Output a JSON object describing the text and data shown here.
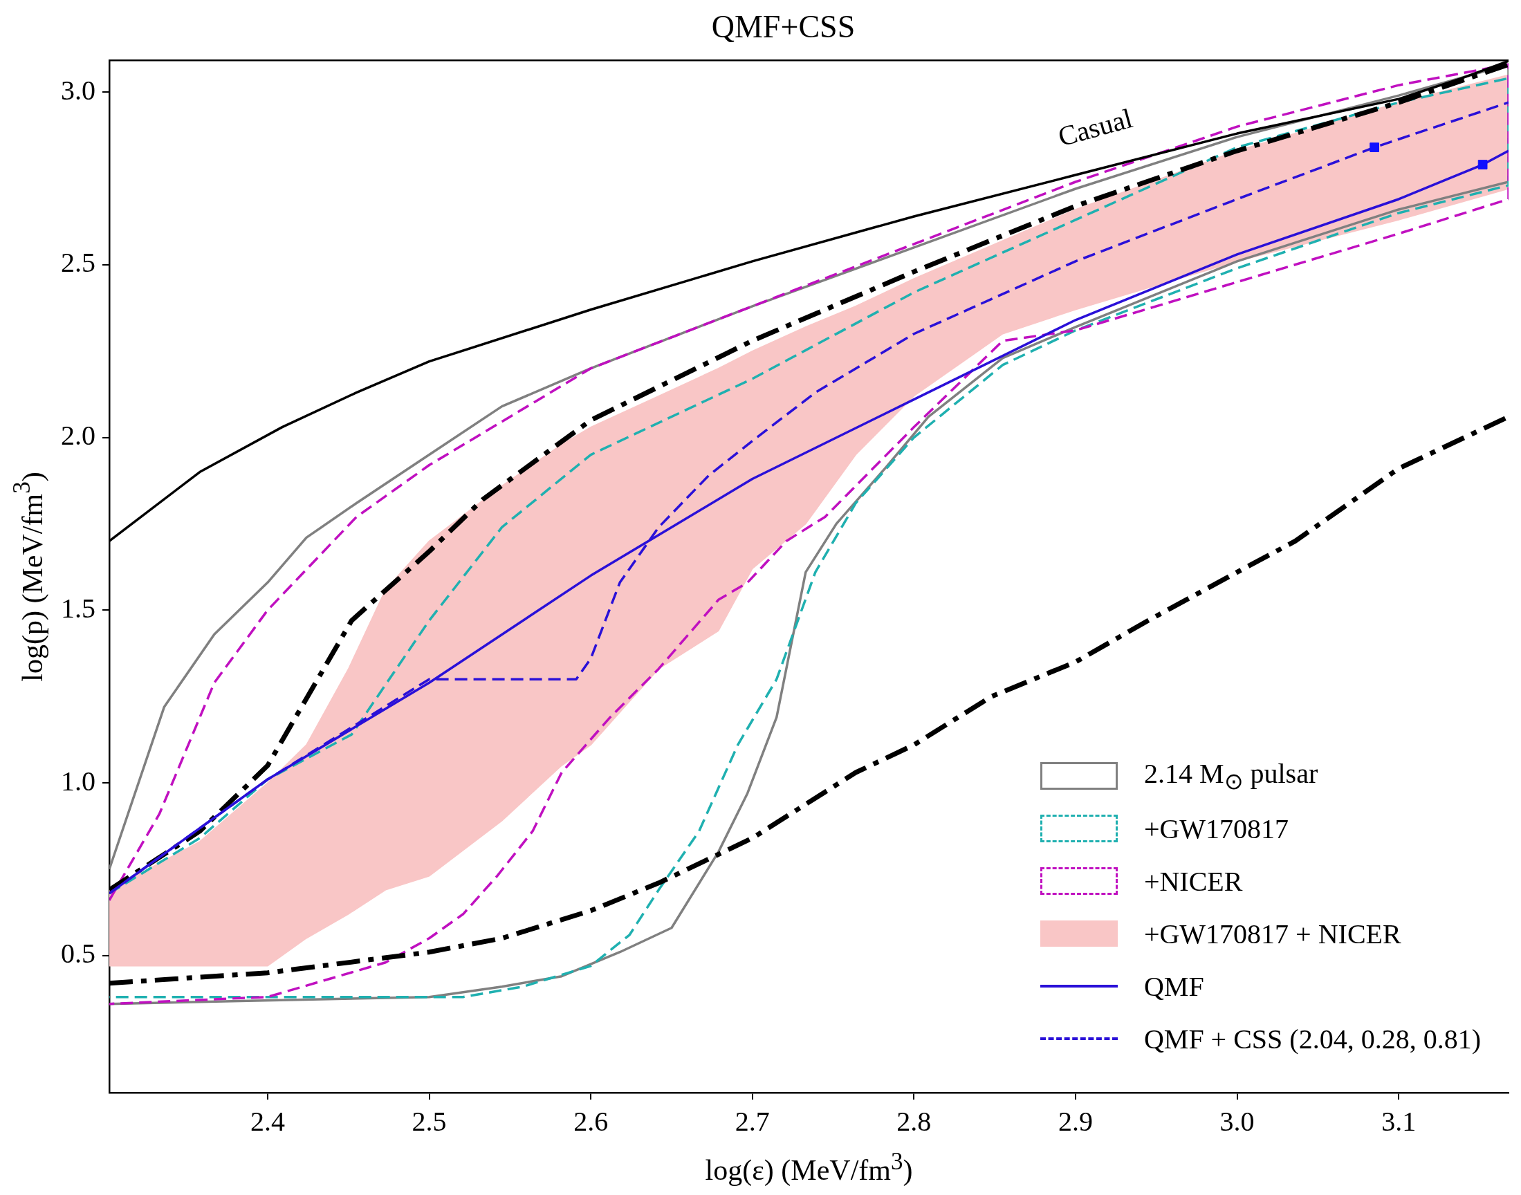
{
  "chart_data": {
    "type": "line",
    "title": "QMF+CSS",
    "xlabel": "log(ε) (MeV/fm$^{3}$)",
    "ylabel": "log(p) (MeV/fm$^{3}$)",
    "xlim": [
      2.302,
      3.168
    ],
    "ylim": [
      0.103,
      3.092
    ],
    "xticks": [
      2.4,
      2.5,
      2.6,
      2.7,
      2.8,
      2.9,
      {
        "value": 3,
        "label": "3.0"
      },
      3.1
    ],
    "yticks": [
      0.5,
      {
        "value": 1,
        "label": "1.0"
      },
      1.5,
      {
        "value": 2,
        "label": "2.0"
      },
      2.5,
      {
        "value": 3,
        "label": "3.0"
      }
    ],
    "legend": "bottom right",
    "annotations": [
      "Casual"
    ],
    "series": [
      {
        "name": "2.14 M$_{⊙}$ pulsar",
        "color": "#808080",
        "line_style": "solid",
        "x": [
          2.302,
          2.336,
          2.367,
          2.4,
          2.424,
          2.455,
          2.5,
          2.545,
          2.6,
          2.7,
          2.8,
          2.9,
          3.0,
          3.1,
          3.168,
          3.168,
          3.1,
          3.0,
          2.9,
          2.855,
          2.809,
          2.782,
          2.752,
          2.733,
          2.715,
          2.697,
          2.679,
          2.65,
          2.618,
          2.582,
          2.545,
          2.5,
          2.302
        ],
        "values": [
          0.75,
          1.22,
          1.43,
          1.58,
          1.71,
          1.81,
          1.95,
          2.09,
          2.2,
          2.38,
          2.55,
          2.72,
          2.87,
          2.99,
          3.08,
          2.74,
          2.66,
          2.51,
          2.32,
          2.23,
          2.06,
          1.91,
          1.75,
          1.61,
          1.19,
          0.97,
          0.8,
          0.58,
          0.51,
          0.44,
          0.41,
          0.38,
          0.36
        ]
      },
      {
        "name": "+GW170817",
        "color": "#1fb0b0",
        "line_style": "dashed",
        "x": [
          2.302,
          2.358,
          2.4,
          2.452,
          2.5,
          2.545,
          2.6,
          2.7,
          2.8,
          2.9,
          3.0,
          3.1,
          3.168,
          3.168,
          3.1,
          3.0,
          2.9,
          2.855,
          2.8,
          2.764,
          2.739,
          2.715,
          2.691,
          2.667,
          2.642,
          2.624,
          2.6,
          2.558,
          2.521,
          2.302
        ],
        "values": [
          0.68,
          0.84,
          1.01,
          1.14,
          1.47,
          1.74,
          1.95,
          2.17,
          2.42,
          2.63,
          2.84,
          2.97,
          3.04,
          2.73,
          2.65,
          2.49,
          2.31,
          2.21,
          2.0,
          1.81,
          1.61,
          1.3,
          1.11,
          0.86,
          0.69,
          0.56,
          0.47,
          0.41,
          0.38,
          0.38
        ]
      },
      {
        "name": "+NICER",
        "color": "#c010c0",
        "line_style": "dashed",
        "x": [
          2.302,
          2.333,
          2.367,
          2.4,
          2.455,
          2.5,
          2.6,
          2.7,
          2.8,
          2.9,
          3.0,
          3.1,
          3.168,
          3.168,
          3.1,
          3.0,
          2.9,
          2.855,
          2.8,
          2.764,
          2.745,
          2.721,
          2.697,
          2.679,
          2.642,
          2.612,
          2.582,
          2.564,
          2.542,
          2.521,
          2.5,
          2.473,
          2.4,
          2.302
        ],
        "values": [
          0.66,
          0.91,
          1.29,
          1.5,
          1.77,
          1.92,
          2.2,
          2.38,
          2.56,
          2.74,
          2.9,
          3.02,
          3.08,
          2.69,
          2.59,
          2.45,
          2.31,
          2.28,
          2.03,
          1.86,
          1.77,
          1.7,
          1.58,
          1.53,
          1.33,
          1.19,
          1.03,
          0.86,
          0.73,
          0.62,
          0.55,
          0.48,
          0.38,
          0.36
        ]
      },
      {
        "name": "+GW170817 + NICER",
        "type": "area",
        "color": "#f9c6c6",
        "x": [
          2.302,
          2.358,
          2.4,
          2.424,
          2.45,
          2.473,
          2.5,
          2.545,
          2.582,
          2.6,
          2.642,
          2.679,
          2.7,
          2.733,
          2.764,
          2.8,
          2.855,
          2.9,
          3.0,
          3.1,
          3.168,
          3.168,
          3.1,
          3.0,
          2.9,
          2.855,
          2.8,
          2.764,
          2.733,
          2.7,
          2.679,
          2.642,
          2.6,
          2.582,
          2.545,
          2.5,
          2.473,
          2.45,
          2.424,
          2.4,
          2.358,
          2.302
        ],
        "values": [
          0.69,
          0.83,
          1.0,
          1.11,
          1.33,
          1.56,
          1.7,
          1.86,
          1.98,
          2.03,
          2.12,
          2.2,
          2.25,
          2.32,
          2.38,
          2.46,
          2.57,
          2.66,
          2.83,
          2.97,
          3.05,
          2.72,
          2.63,
          2.51,
          2.37,
          2.3,
          2.12,
          1.95,
          1.75,
          1.62,
          1.44,
          1.33,
          1.11,
          1.05,
          0.89,
          0.73,
          0.69,
          0.62,
          0.55,
          0.47,
          0.47,
          0.47
        ]
      },
      {
        "color": "#000000",
        "line_style": "solid",
        "x": [
          2.302,
          2.358,
          2.409,
          2.455,
          2.5,
          2.6,
          2.7,
          2.8,
          2.9,
          3.0,
          3.1,
          3.139,
          3.168
        ],
        "values": [
          1.7,
          1.9,
          2.03,
          2.13,
          2.22,
          2.37,
          2.51,
          2.64,
          2.76,
          2.88,
          2.98,
          3.04,
          3.09
        ]
      },
      {
        "color": "#000000",
        "line_style": "dashdot",
        "x": [
          2.302,
          2.358,
          2.4,
          2.452,
          2.5,
          2.533,
          2.6,
          2.7,
          2.8,
          2.9,
          3.0,
          3.1,
          3.168
        ],
        "values": [
          0.69,
          0.86,
          1.05,
          1.47,
          1.67,
          1.82,
          2.05,
          2.28,
          2.48,
          2.67,
          2.83,
          2.97,
          3.08
        ]
      },
      {
        "color": "#000000",
        "line_style": "dashdot",
        "x": [
          2.302,
          2.4,
          2.5,
          2.545,
          2.6,
          2.642,
          2.7,
          2.764,
          2.8,
          2.848,
          2.9,
          2.945,
          3.0,
          3.036,
          3.1,
          3.168
        ],
        "values": [
          0.42,
          0.45,
          0.51,
          0.55,
          0.63,
          0.71,
          0.84,
          1.03,
          1.11,
          1.25,
          1.35,
          1.47,
          1.61,
          1.7,
          1.91,
          2.06
        ]
      },
      {
        "name": "QMF",
        "color": "#2a10d8",
        "line_style": "solid",
        "x": [
          2.302,
          2.4,
          2.5,
          2.6,
          2.7,
          2.8,
          2.9,
          3.0,
          3.1,
          3.152,
          3.168
        ],
        "values": [
          0.68,
          1.01,
          1.29,
          1.6,
          1.88,
          2.11,
          2.34,
          2.53,
          2.69,
          2.79,
          2.83
        ]
      },
      {
        "name": "QMF + CSS (2.04, 0.28, 0.81)",
        "color": "#2a10d8",
        "line_style": "dashed",
        "x": [
          2.302,
          2.4,
          2.5,
          2.591,
          2.6,
          2.618,
          2.642,
          2.673,
          2.7,
          2.739,
          2.8,
          2.9,
          3.0,
          3.085,
          3.168
        ],
        "values": [
          0.68,
          1.01,
          1.3,
          1.3,
          1.36,
          1.58,
          1.74,
          1.89,
          1.99,
          2.13,
          2.3,
          2.51,
          2.69,
          2.84,
          2.97
        ]
      },
      {
        "type": "scatter",
        "color": "#1010ff",
        "marker": "square",
        "x": [
          3.085,
          3.152
        ],
        "values": [
          2.84,
          2.79
        ]
      }
    ]
  }
}
